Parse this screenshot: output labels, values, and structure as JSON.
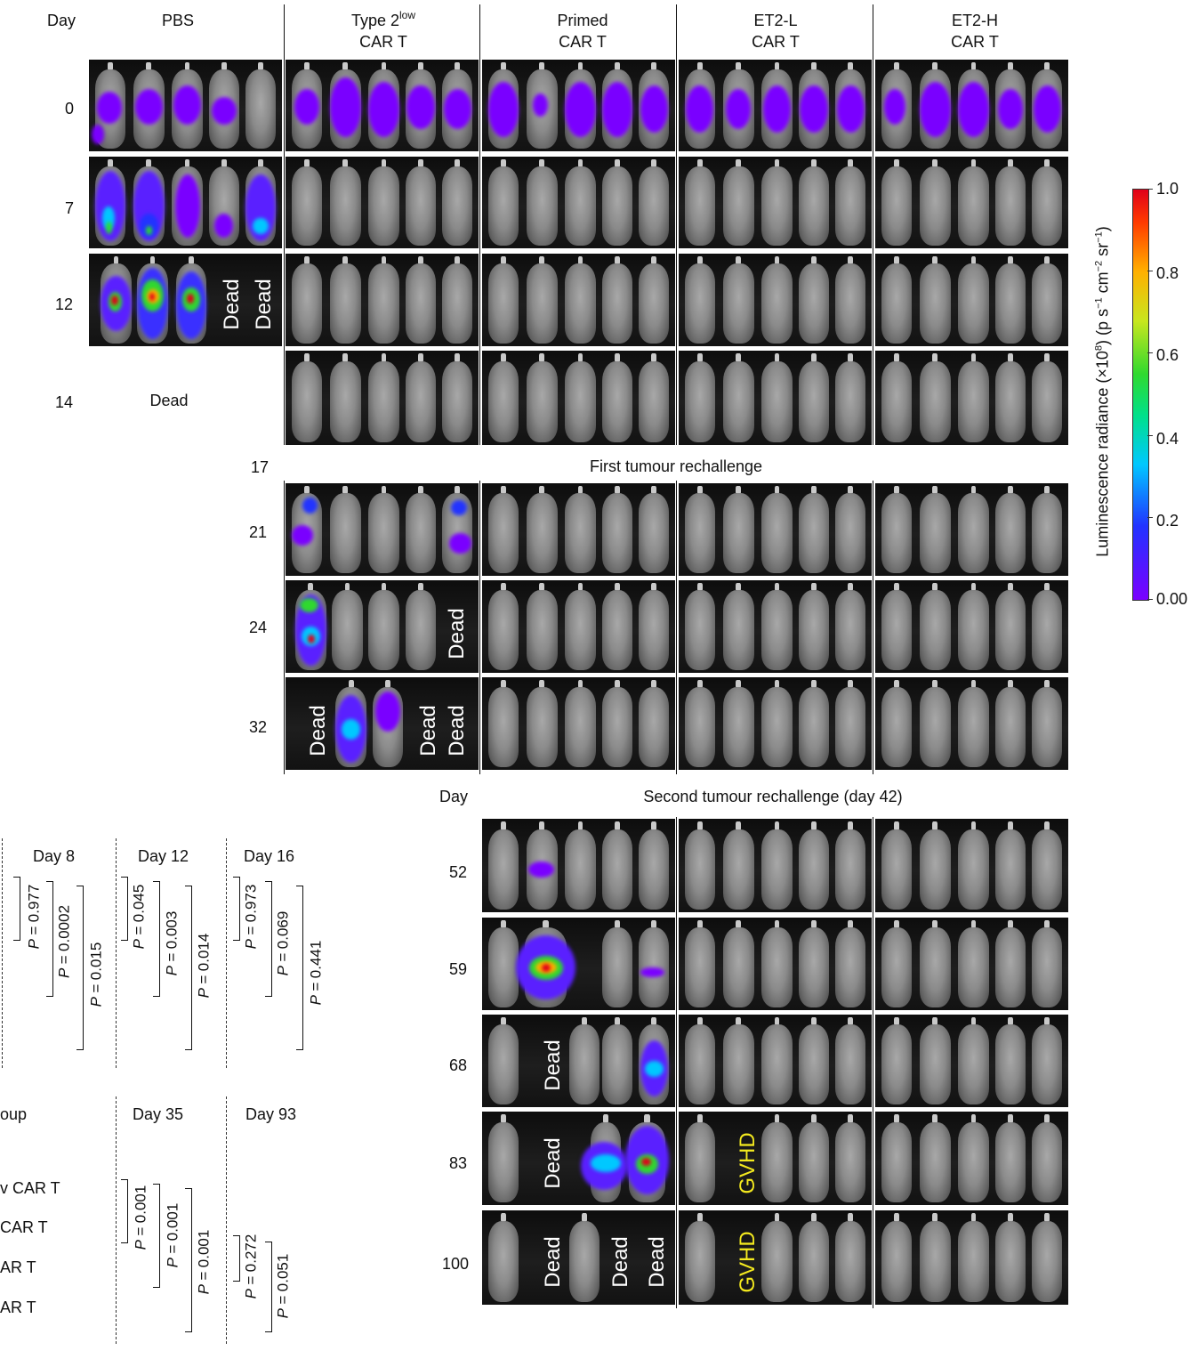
{
  "header": {
    "day_label": "Day",
    "groups": [
      {
        "line1": "PBS",
        "line2": ""
      },
      {
        "line1": "Type 2",
        "sup": "low",
        "line2": "CAR T"
      },
      {
        "line1": "Primed",
        "line2": "CAR T"
      },
      {
        "line1": "ET2-L",
        "line2": "CAR T"
      },
      {
        "line1": "ET2-H",
        "line2": "CAR T"
      }
    ]
  },
  "days_top": [
    "0",
    "7",
    "12",
    "14"
  ],
  "pbs_dead_day14": "Dead",
  "dead_label": "Dead",
  "gvhd_label": "GVHD",
  "rechallenge1": {
    "day": "17",
    "label": "First tumour rechallenge"
  },
  "days_mid": [
    "21",
    "24",
    "32"
  ],
  "rechallenge2": {
    "day_label": "Day",
    "label": "Second tumour rechallenge (day 42)"
  },
  "days_bottom": [
    "52",
    "59",
    "68",
    "83",
    "100"
  ],
  "colorbar": {
    "label": "Luminescence radiance (×10",
    "exp": "8",
    "label_tail": ") (p s",
    "unit_exp1": "−1",
    "unit_mid": " cm",
    "unit_exp2": "−2",
    "unit_mid2": " sr",
    "unit_exp3": "−1",
    "unit_end": ")",
    "ticks": [
      "1.0",
      "0.8",
      "0.6",
      "0.4",
      "0.2",
      "0.00"
    ],
    "colors": [
      "#7a00ff",
      "#2233ff",
      "#00c8ff",
      "#2fd92f",
      "#ffb000",
      "#e0001a"
    ]
  },
  "stats_top": {
    "days": [
      "Day 8",
      "Day 12",
      "Day 16"
    ],
    "p_values": [
      [
        "0.977",
        "0.0002",
        "0.015"
      ],
      [
        "0.045",
        "0.003",
        "0.014"
      ],
      [
        "0.973",
        "0.069",
        "0.441"
      ]
    ]
  },
  "stats_bottom": {
    "legend_title": "oup",
    "legend_items": [
      "v CAR T",
      "CAR T",
      "AR T",
      "AR T"
    ],
    "days": [
      "Day 35",
      "Day 93"
    ],
    "p_values": [
      [
        "0.001",
        "0.001",
        "0.001"
      ],
      [
        "0.272",
        "0.051"
      ]
    ]
  },
  "p_label": "P = "
}
